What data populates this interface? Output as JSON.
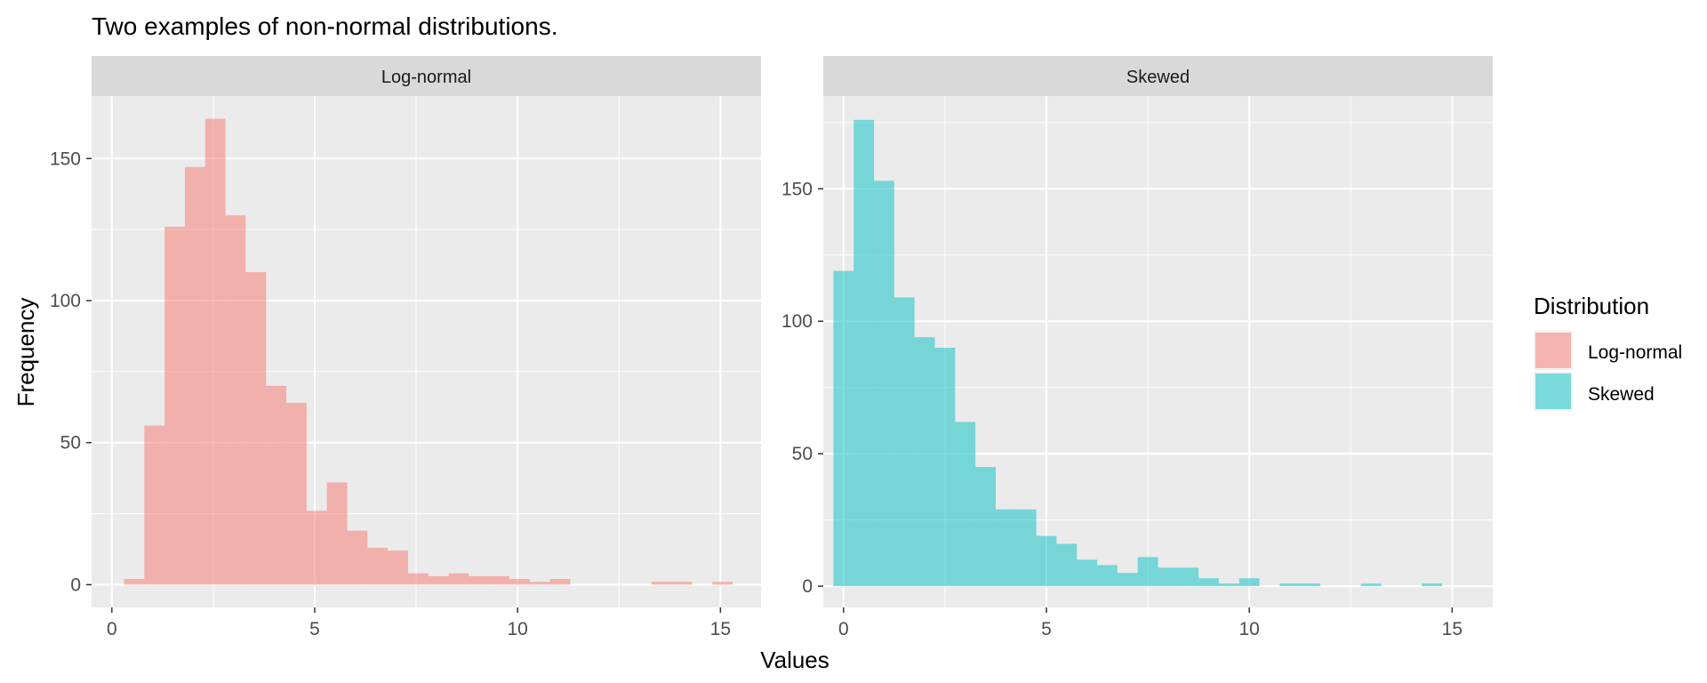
{
  "chart_data": {
    "type": "bar",
    "title": "Two examples of non-normal distributions.",
    "xlabel": "Values",
    "ylabel": "Frequency",
    "legend": {
      "title": "Distribution",
      "placement": "right",
      "entries": [
        "Log-normal",
        "Skewed"
      ]
    },
    "colors": {
      "Log-normal": "#F8766D",
      "Skewed": "#00BFC4"
    },
    "xlim": [
      -0.5,
      16
    ],
    "xticks": [
      0,
      5,
      10,
      15
    ],
    "bin_width": 0.5,
    "panels": [
      {
        "name": "Log-normal",
        "ylim": [
          -8,
          172
        ],
        "yticks": [
          0,
          50,
          100,
          150
        ],
        "bin_starts": [
          0.3,
          0.8,
          1.3,
          1.8,
          2.3,
          2.8,
          3.3,
          3.8,
          4.3,
          4.8,
          5.3,
          5.8,
          6.3,
          6.8,
          7.3,
          7.8,
          8.3,
          8.8,
          9.3,
          9.8,
          10.3,
          10.8,
          11.3,
          11.8,
          12.3,
          12.8,
          13.3,
          13.8,
          14.3,
          14.8
        ],
        "counts": [
          2,
          56,
          126,
          147,
          164,
          130,
          110,
          70,
          64,
          26,
          36,
          19,
          13,
          12,
          4,
          3,
          4,
          3,
          3,
          2,
          1,
          2,
          0,
          0,
          0,
          0,
          1,
          1,
          0,
          1
        ]
      },
      {
        "name": "Skewed",
        "ylim": [
          -8,
          185
        ],
        "yticks": [
          0,
          50,
          100,
          150
        ],
        "bin_starts": [
          -0.25,
          0.25,
          0.75,
          1.25,
          1.75,
          2.25,
          2.75,
          3.25,
          3.75,
          4.25,
          4.75,
          5.25,
          5.75,
          6.25,
          6.75,
          7.25,
          7.75,
          8.25,
          8.75,
          9.25,
          9.75,
          10.25,
          10.75,
          11.25,
          11.75,
          12.25,
          12.75,
          13.25,
          13.75,
          14.25
        ],
        "counts": [
          119,
          176,
          153,
          109,
          94,
          90,
          62,
          45,
          29,
          29,
          19,
          16,
          10,
          8,
          5,
          11,
          7,
          7,
          3,
          1,
          3,
          0,
          1,
          1,
          0,
          0,
          1,
          0,
          0,
          1
        ]
      }
    ]
  }
}
